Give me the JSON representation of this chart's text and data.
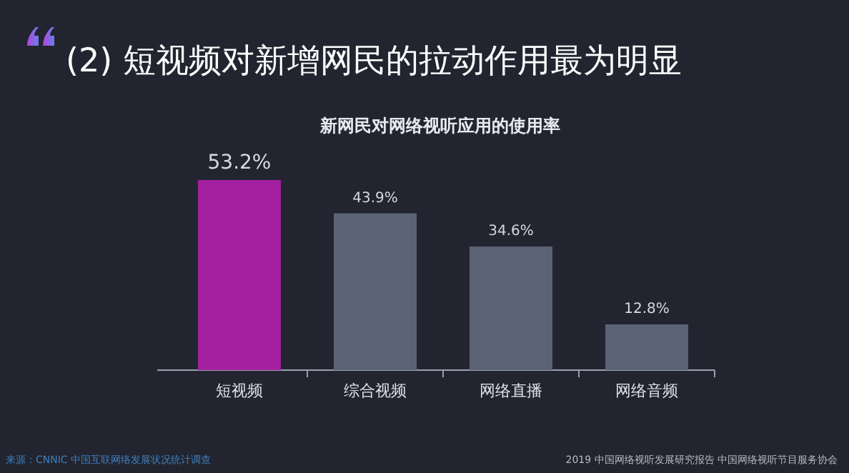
{
  "chart_data": {
    "type": "bar",
    "title": "(2) 短视频对新增网民的拉动作用最为明显",
    "subtitle": "新网民对网络视听应用的使用率",
    "categories": [
      "短视频",
      "综合视频",
      "网络直播",
      "网络音频"
    ],
    "values": [
      53.2,
      43.9,
      34.6,
      12.8
    ],
    "colors": [
      "#a41fa0",
      "#5b6276",
      "#5b6276",
      "#5b6276"
    ],
    "value_labels": [
      "53.2%",
      "43.9%",
      "34.6%",
      "12.8%"
    ],
    "annotations": [
      "来源：CNNIC 中国互联网络发展状况统计调查",
      "2019 中国网络视听发展研究报告 中国网络视听节目服务协会"
    ]
  }
}
